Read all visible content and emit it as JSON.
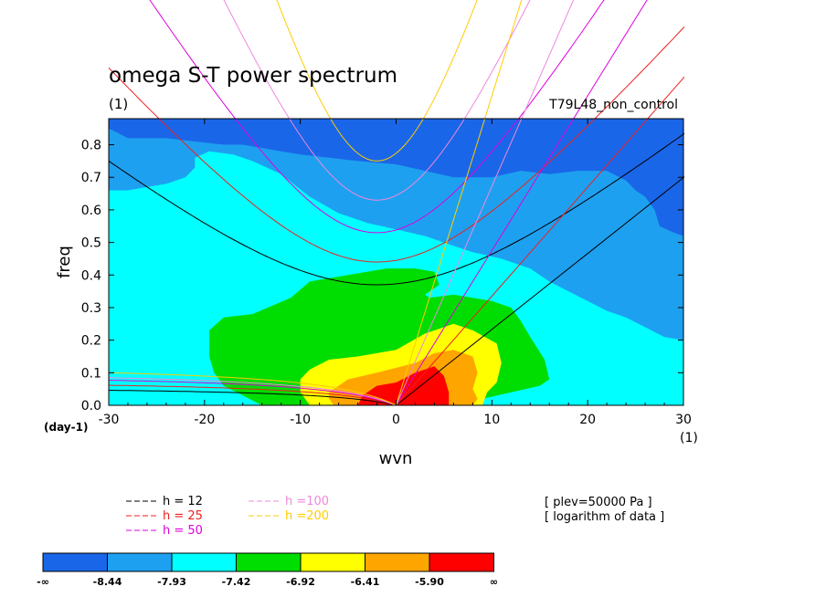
{
  "chart_data": {
    "type": "heatmap",
    "title": "omega S-T power spectrum",
    "units_label": "(1)",
    "dataset": "T79L48_non_control",
    "xlabel": "wvn",
    "ylabel": "freq",
    "x_units": "(1)",
    "y_units": "(day-1)",
    "xlim": [
      -30,
      30
    ],
    "ylim": [
      0,
      0.88
    ],
    "xticks": [
      -30,
      -20,
      -10,
      0,
      10,
      20,
      30
    ],
    "yticks": [
      0.0,
      0.1,
      0.2,
      0.3,
      0.4,
      0.5,
      0.6,
      0.7,
      0.8
    ],
    "contour_levels": [
      "-∞",
      "-8.44",
      "-7.93",
      "-7.42",
      "-6.92",
      "-6.41",
      "-5.90",
      "∞"
    ],
    "fill_colors": [
      "#1a66e8",
      "#1ea0f0",
      "#00ffff",
      "#00dd00",
      "#ffff00",
      "#ffa500",
      "#ff0000"
    ],
    "fill_regions": [
      {
        "level": 1,
        "points": [
          [
            -30,
            0.85
          ],
          [
            -28,
            0.82
          ],
          [
            -24,
            0.82
          ],
          [
            -21,
            0.81
          ],
          [
            -18,
            0.8
          ],
          [
            -16,
            0.8
          ],
          [
            -14,
            0.79
          ],
          [
            -12,
            0.78
          ],
          [
            -10,
            0.77
          ],
          [
            -7,
            0.76
          ],
          [
            -4,
            0.75
          ],
          [
            0,
            0.74
          ],
          [
            3,
            0.72
          ],
          [
            6,
            0.7
          ],
          [
            10,
            0.7
          ],
          [
            13,
            0.72
          ],
          [
            16,
            0.71
          ],
          [
            19,
            0.72
          ],
          [
            22,
            0.72
          ],
          [
            24,
            0.69
          ],
          [
            25,
            0.66
          ],
          [
            26,
            0.64
          ],
          [
            27,
            0.6
          ],
          [
            27.5,
            0.55
          ],
          [
            29,
            0.53
          ],
          [
            30,
            0.52
          ],
          [
            30,
            0.0
          ],
          [
            -30,
            0.0
          ]
        ]
      },
      {
        "level": 2,
        "points": [
          [
            -30,
            0.66
          ],
          [
            -28,
            0.66
          ],
          [
            -26,
            0.67
          ],
          [
            -24,
            0.68
          ],
          [
            -22,
            0.7
          ],
          [
            -21,
            0.73
          ],
          [
            -21,
            0.76
          ],
          [
            -19.5,
            0.78
          ],
          [
            -17,
            0.77
          ],
          [
            -15,
            0.75
          ],
          [
            -12,
            0.71
          ],
          [
            -9,
            0.64
          ],
          [
            -6,
            0.59
          ],
          [
            -3,
            0.56
          ],
          [
            0,
            0.54
          ],
          [
            3,
            0.52
          ],
          [
            6,
            0.49
          ],
          [
            8,
            0.47
          ],
          [
            11,
            0.45
          ],
          [
            14,
            0.42
          ],
          [
            16,
            0.38
          ],
          [
            18,
            0.35
          ],
          [
            20,
            0.32
          ],
          [
            22,
            0.29
          ],
          [
            24,
            0.27
          ],
          [
            26,
            0.24
          ],
          [
            28,
            0.21
          ],
          [
            30,
            0.2
          ],
          [
            30,
            0.0
          ],
          [
            -30,
            0.0
          ]
        ]
      },
      {
        "level": 3,
        "points": [
          [
            -19.5,
            0.23
          ],
          [
            -18,
            0.27
          ],
          [
            -15,
            0.28
          ],
          [
            -11,
            0.33
          ],
          [
            -9,
            0.38
          ],
          [
            -5,
            0.4
          ],
          [
            -1,
            0.42
          ],
          [
            2,
            0.42
          ],
          [
            4,
            0.41
          ],
          [
            4.5,
            0.37
          ],
          [
            3,
            0.34
          ],
          [
            3.5,
            0.33
          ],
          [
            6,
            0.34
          ],
          [
            8,
            0.33
          ],
          [
            10,
            0.32
          ],
          [
            12,
            0.3
          ],
          [
            13,
            0.26
          ],
          [
            14,
            0.21
          ],
          [
            15.5,
            0.14
          ],
          [
            16,
            0.08
          ],
          [
            15,
            0.06
          ],
          [
            12,
            0.04
          ],
          [
            9,
            0.02
          ],
          [
            8,
            0.01
          ],
          [
            5,
            0.0
          ],
          [
            -14,
            0.0
          ],
          [
            -16,
            0.03
          ],
          [
            -18,
            0.06
          ],
          [
            -19,
            0.1
          ],
          [
            -19.5,
            0.15
          ]
        ]
      },
      {
        "level": 4,
        "points": [
          [
            -10,
            0.08
          ],
          [
            -9,
            0.11
          ],
          [
            -7,
            0.14
          ],
          [
            -4,
            0.15
          ],
          [
            0,
            0.17
          ],
          [
            3,
            0.22
          ],
          [
            6,
            0.25
          ],
          [
            8,
            0.23
          ],
          [
            10.5,
            0.19
          ],
          [
            11,
            0.13
          ],
          [
            10.5,
            0.07
          ],
          [
            9.5,
            0.04
          ],
          [
            9,
            0.0
          ],
          [
            -9,
            0.0
          ],
          [
            -10,
            0.04
          ]
        ]
      },
      {
        "level": 5,
        "points": [
          [
            -7,
            0.04
          ],
          [
            -5,
            0.08
          ],
          [
            -2,
            0.1
          ],
          [
            2,
            0.13
          ],
          [
            4,
            0.16
          ],
          [
            6,
            0.17
          ],
          [
            8,
            0.15
          ],
          [
            8.5,
            0.1
          ],
          [
            8,
            0.05
          ],
          [
            8.5,
            0.02
          ],
          [
            8,
            0.0
          ],
          [
            -6.5,
            0.0
          ],
          [
            -7,
            0.02
          ]
        ]
      },
      {
        "level": 6,
        "points": [
          [
            -3.5,
            0.03
          ],
          [
            -2,
            0.06
          ],
          [
            0,
            0.07
          ],
          [
            2,
            0.1
          ],
          [
            4,
            0.12
          ],
          [
            5,
            0.09
          ],
          [
            5.5,
            0.04
          ],
          [
            5.5,
            0.0
          ],
          [
            -4,
            0.0
          ]
        ]
      }
    ],
    "dispersion_curves": [
      {
        "name": "h = 12",
        "color": "#000000",
        "intercepts": [
          0.37,
          0.06
        ]
      },
      {
        "name": "h = 25",
        "color": "#ee2020",
        "intercepts": [
          0.44,
          0.08
        ]
      },
      {
        "name": "h = 50",
        "color": "#dd00dd",
        "intercepts": [
          0.53,
          0.1
        ]
      },
      {
        "name": "h =100",
        "color": "#ee88dd",
        "intercepts": [
          0.63,
          0.11
        ]
      },
      {
        "name": "h =200",
        "color": "#ffcc00",
        "intercepts": [
          0.75,
          0.13
        ]
      }
    ],
    "kelvin_lines": [
      {
        "color": "#000000",
        "slope": 0.0233
      },
      {
        "color": "#ee2020",
        "slope": 0.0335
      },
      {
        "color": "#dd00dd",
        "slope": 0.0475
      },
      {
        "color": "#ee88dd",
        "slope": 0.0672
      },
      {
        "color": "#ffcc00",
        "slope": 0.095
      }
    ],
    "annotations": [
      "[ plev=50000 Pa ]",
      "[ logarithm of data ]"
    ]
  }
}
